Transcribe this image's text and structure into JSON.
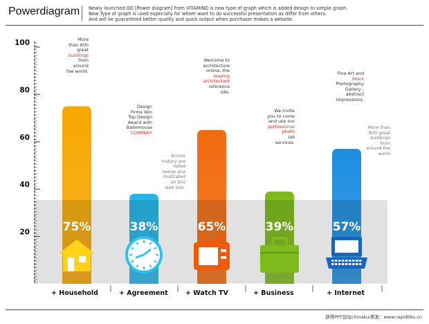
{
  "header": {
    "title": "Powerdiagram",
    "desc_lines": [
      "Newly launched OD [Power diagram] from VITAMIND is new type of graph which is added design to simple graph.",
      "New Type of graph is used especially for whom want to do successful presentation as differ from others.",
      "And will be guaranteed better quality and quick output when purchaser makes a website."
    ]
  },
  "footer": {
    "text": "获得PPT论坛chinakui美发：www.rapidbbs.cn"
  },
  "chart_data": {
    "type": "bar",
    "categories": [
      "Household",
      "Agreement",
      "Watch TV",
      "Business",
      "Internet"
    ],
    "category_prefix": "+",
    "values": [
      75,
      38,
      65,
      39,
      57
    ],
    "value_labels": [
      "75%",
      "38%",
      "65%",
      "39%",
      "57%"
    ],
    "ylim": [
      0,
      100
    ],
    "yticks": [
      20,
      40,
      60,
      80,
      100
    ],
    "grid": false,
    "colors": [
      "#f7a800",
      "#24b5e8",
      "#f26a0e",
      "#7cba1a",
      "#1c8ee0"
    ],
    "icons": [
      "house-icon",
      "clock-icon",
      "tv-icon",
      "briefcase-icon",
      "laptop-icon"
    ]
  },
  "annotations": {
    "household": [
      "More",
      "than 800",
      "great",
      {
        "hl": "buildings"
      },
      "from",
      "around",
      "the world."
    ],
    "agreement_top": [
      "Design",
      "Firms Win",
      "Top Design",
      "Award with",
      "Ballemouse",
      {
        "hl": "COMPANY"
      }
    ],
    "agreement_side": [
      "Across",
      "history are",
      "listed",
      "below and",
      "illustrated",
      "on this",
      "web Site."
    ],
    "watchtv": [
      "Welcome to",
      "architecture",
      "online, the",
      {
        "hl": "leading"
      },
      {
        "hl": "architecture"
      },
      "reference",
      "site."
    ],
    "business": [
      "We invite",
      "you to come",
      "and use our",
      {
        "hl": "professional"
      },
      {
        "hl": "photo"
      },
      "lab",
      "services."
    ],
    "internet_top": [
      "Fine Art and",
      {
        "hl": "Stock"
      },
      "Photography",
      "Gallery -",
      "abstract",
      "impressions."
    ],
    "internet_side": [
      "More than",
      "800 great",
      "buildings",
      "from",
      "around the",
      "world"
    ]
  }
}
